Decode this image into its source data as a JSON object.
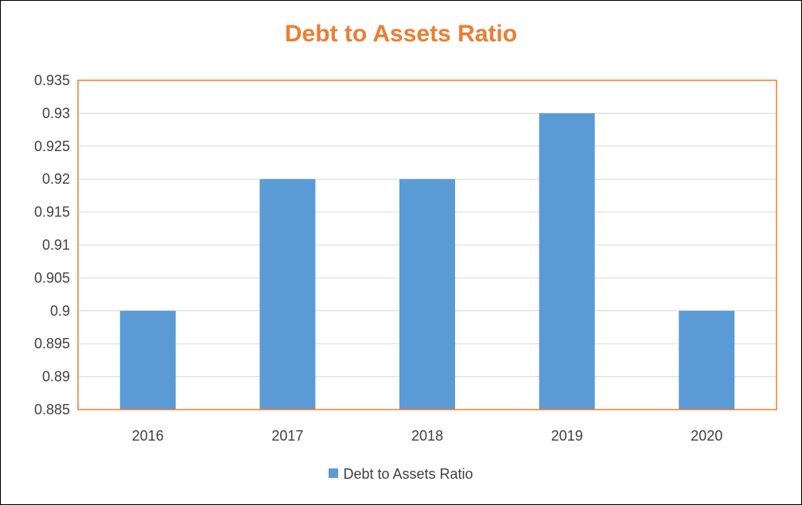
{
  "chart_data": {
    "type": "bar",
    "title": "Debt to Assets Ratio",
    "categories": [
      "2016",
      "2017",
      "2018",
      "2019",
      "2020"
    ],
    "series": [
      {
        "name": "Debt to Assets Ratio",
        "values": [
          0.9,
          0.92,
          0.92,
          0.93,
          0.9
        ],
        "color": "#5B9BD5"
      }
    ],
    "ylim": [
      0.885,
      0.935
    ],
    "yticks": [
      "0.885",
      "0.89",
      "0.895",
      "0.9",
      "0.905",
      "0.91",
      "0.915",
      "0.92",
      "0.925",
      "0.93",
      "0.935"
    ],
    "xlabel": "",
    "ylabel": "",
    "grid": true,
    "legend": "bottom",
    "title_color": "#ED7D31",
    "plot_border_color": "#ED7D31",
    "gridline_color": "#D9D9D9"
  }
}
